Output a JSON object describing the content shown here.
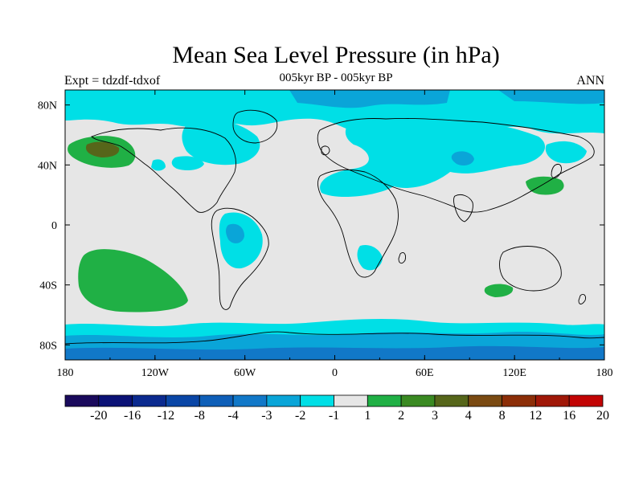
{
  "title": "Mean Sea Level Pressure (in hPa)",
  "subtitle": "005kyr BP - 005kyr BP",
  "left_label": "Expt = tdzdf-tdxof",
  "right_label": "ANN",
  "map": {
    "lon_ticks": [
      "180",
      "120W",
      "60W",
      "0",
      "60E",
      "120E",
      "180"
    ],
    "lat_ticks": [
      "80N",
      "40N",
      "0",
      "40S",
      "80S"
    ]
  },
  "colorbar": {
    "labels": [
      "-20",
      "-16",
      "-12",
      "-8",
      "-4",
      "-3",
      "-2",
      "-1",
      "1",
      "2",
      "3",
      "4",
      "8",
      "12",
      "16",
      "20"
    ],
    "colors": [
      "#1a0a5c",
      "#0b1276",
      "#0b2a8f",
      "#0a46a6",
      "#0f5fb8",
      "#1178c8",
      "#0aa5d8",
      "#00dfe6",
      "#e6e6e6",
      "#20b045",
      "#3a8a22",
      "#56661a",
      "#7a4a12",
      "#8c2e08",
      "#a01808",
      "#c20404"
    ]
  },
  "chart_data": {
    "type": "heatmap",
    "title": "Mean Sea Level Pressure (in hPa)",
    "subtitle": "005kyr BP - 005kyr BP",
    "experiment": "Expt = tdzdf-tdxof",
    "season": "ANN",
    "xlim": [
      -180,
      180
    ],
    "ylim": [
      -90,
      90
    ],
    "contour_levels": [
      -20,
      -16,
      -12,
      -8,
      -4,
      -3,
      -2,
      -1,
      1,
      2,
      3,
      4,
      8,
      12,
      16,
      20
    ]
  }
}
